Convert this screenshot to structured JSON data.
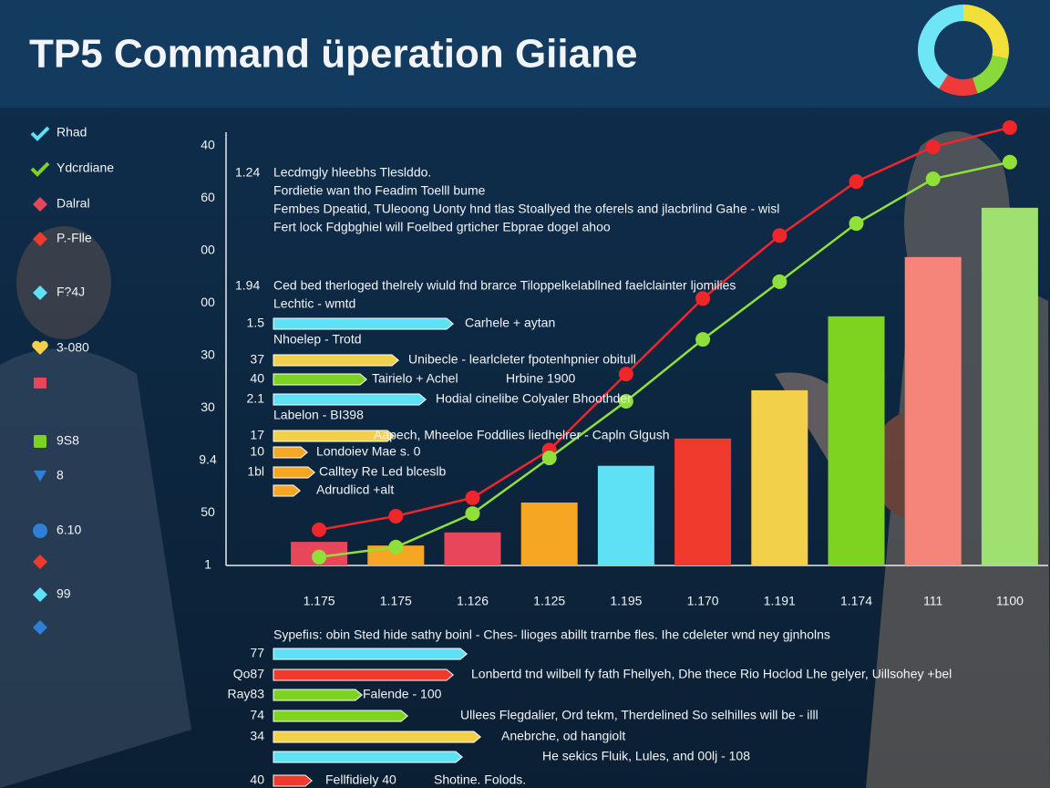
{
  "chart_data": {
    "type": "bar",
    "title": "TP5 Command üperation Giiane",
    "categories": [
      "1.175",
      "1.175",
      "1.126",
      "1.125",
      "1.195",
      "1.170",
      "1.191",
      "1.174",
      "111",
      "1100"
    ],
    "values": [
      4.5,
      3.8,
      6.3,
      12.0,
      19.0,
      24.2,
      33.4,
      47.5,
      58.8,
      68.2
    ],
    "colors": [
      "#e8475b",
      "#f5a623",
      "#e8475b",
      "#f5a623",
      "#5ee0f5",
      "#f03a2e",
      "#f2d04a",
      "#7ed321",
      "#f5857a",
      "#9fe070"
    ],
    "lines": [
      {
        "color": "#f0262a",
        "values": [
          6.8,
          9.4,
          12.9,
          22.0,
          36.5,
          50.9,
          62.9,
          73.2,
          79.8,
          83.5
        ]
      },
      {
        "color": "#8fe03a",
        "values": [
          1.6,
          3.5,
          9.9,
          20.5,
          31.3,
          43.1,
          54.1,
          65.2,
          73.7,
          76.9
        ]
      }
    ],
    "ylim": [
      0,
      82.6
    ],
    "yticks": [
      {
        "value": 0,
        "label": "1"
      },
      {
        "value": 10,
        "label": "50"
      },
      {
        "value": 20,
        "label": "9.4"
      },
      30,
      {
        "value": 40,
        "label": "30"
      },
      {
        "value": 50,
        "label": "00"
      },
      {
        "value": 60,
        "label": "00"
      },
      {
        "value": 70,
        "label": "60"
      },
      {
        "value": 80,
        "label": "40"
      }
    ],
    "grid": false
  },
  "notes": [
    "1.24",
    "Lecdmgly hleebhs Tleslddo.",
    "Fordietie wan tho Feadim Toelll bume",
    "Fembes Dpeatid, TUleoong Uonty hnd tlas Stoallyed the oferels and jlacbrlind Gahe - wisl",
    "Fert lock Fdgbghiel will Foelbed grticher Ebprae dogel ahoo",
    "1.94",
    "Ced bed therloged thelrely wiuld fnd brarce Tiloppelkelabllned faelclainter ljomilies",
    "Lechtic - wmtd"
  ],
  "callouts": [
    {
      "label": "1.5",
      "color": "#5ee0f5",
      "text": "Carhele + aytan"
    },
    {
      "text": "Nhoelep - Trotd"
    },
    {
      "label": "37",
      "color": "#f2d04a",
      "text": "Unibecle - learlcleter fpotenhpnier obitull"
    },
    {
      "label": "40",
      "color": "#7ed321",
      "text": "Tairielo + Achel",
      "text2": "Hrbine 1900"
    },
    {
      "label": "2.1",
      "color": "#5ee0f5",
      "text": "Hodial cinelibe Colyaler Bhoothder"
    },
    {
      "text": "Labelon - BI398"
    },
    {
      "label": "17",
      "color": "#f2d04a",
      "text": "Aapech, Mheeloe Foddlies liedhelrer - Capln Glgush"
    },
    {
      "label": "10",
      "color": "#f5a623",
      "text": "Londoiev Mae s. 0"
    },
    {
      "label": "1bl",
      "color": "#f5a623",
      "text": "Calltey Re Led blceslb"
    },
    {
      "color": "#f5a623",
      "text": "Adrudlicd +alt"
    }
  ],
  "summary": {
    "heading": "Sypefiıs: obin Sted hide sathy boinl - Ches- llioges abillt trarnbe fles. Ihe cdeleter wnd ney gjnholns",
    "rows": [
      {
        "label": "77",
        "color": "#5ee0f5"
      },
      {
        "label": "Qo87",
        "color": "#f03a2e",
        "text": "Lonbertd tnd wilbell fy fath Fhellyeh, Dhe thece Rio Hoclod Lhe gelyer, Uillsohey +bel"
      },
      {
        "label": "Ray83",
        "color": "#7ed321",
        "text": "Falende - 100"
      },
      {
        "label": "74",
        "color": "#7ed321",
        "text": "Ullees Flegdalier, Ord tekm, Therdelined So selhilles will be - illl"
      },
      {
        "label": "34",
        "color": "#f2d04a",
        "text": "Anebrche, od hangiolt"
      },
      {
        "color": "#5ee0f5",
        "text": "He sekics Fluik, Lules, and 00lj - 108"
      },
      {
        "label": "40",
        "color": "#f03a2e",
        "text": "Fellfidiely 40",
        "text2": "Shotine. Folods."
      }
    ]
  },
  "legend": [
    {
      "text": "Rhad",
      "color": "#5ee0f5",
      "marker": "check"
    },
    {
      "text": "Ydcrdiane",
      "color": "#7ed321",
      "marker": "check"
    },
    {
      "text": "Dalral",
      "color": "#e8475b",
      "marker": "diamond"
    },
    {
      "text": "P.-Flle",
      "color": "#f03a2e",
      "marker": "diamond"
    },
    {
      "text": "F?4J",
      "color": "#5ee0f5",
      "marker": "diamond"
    },
    {
      "text": "3-080",
      "color": "#f2d04a",
      "marker": "heart"
    },
    {
      "color": "#e8475b",
      "marker": "flag"
    },
    {
      "text": "9S8",
      "color": "#7ed321",
      "marker": "square"
    },
    {
      "text": "8",
      "color": "#2f7fd6",
      "marker": "triangle"
    },
    {
      "text": "6.10",
      "color": "#2f7fd6",
      "marker": "circle"
    },
    {
      "color": "#f03a2e",
      "marker": "diamond"
    },
    {
      "text": "99",
      "color": "#5ee0f5",
      "marker": "diamond"
    },
    {
      "color": "#2f7fd6",
      "marker": "diamond"
    }
  ],
  "donut": {
    "values": [
      28,
      17,
      14,
      41
    ],
    "colors": [
      "#f2df3a",
      "#8ad93a",
      "#f03a3a",
      "#6ee6f5"
    ]
  }
}
